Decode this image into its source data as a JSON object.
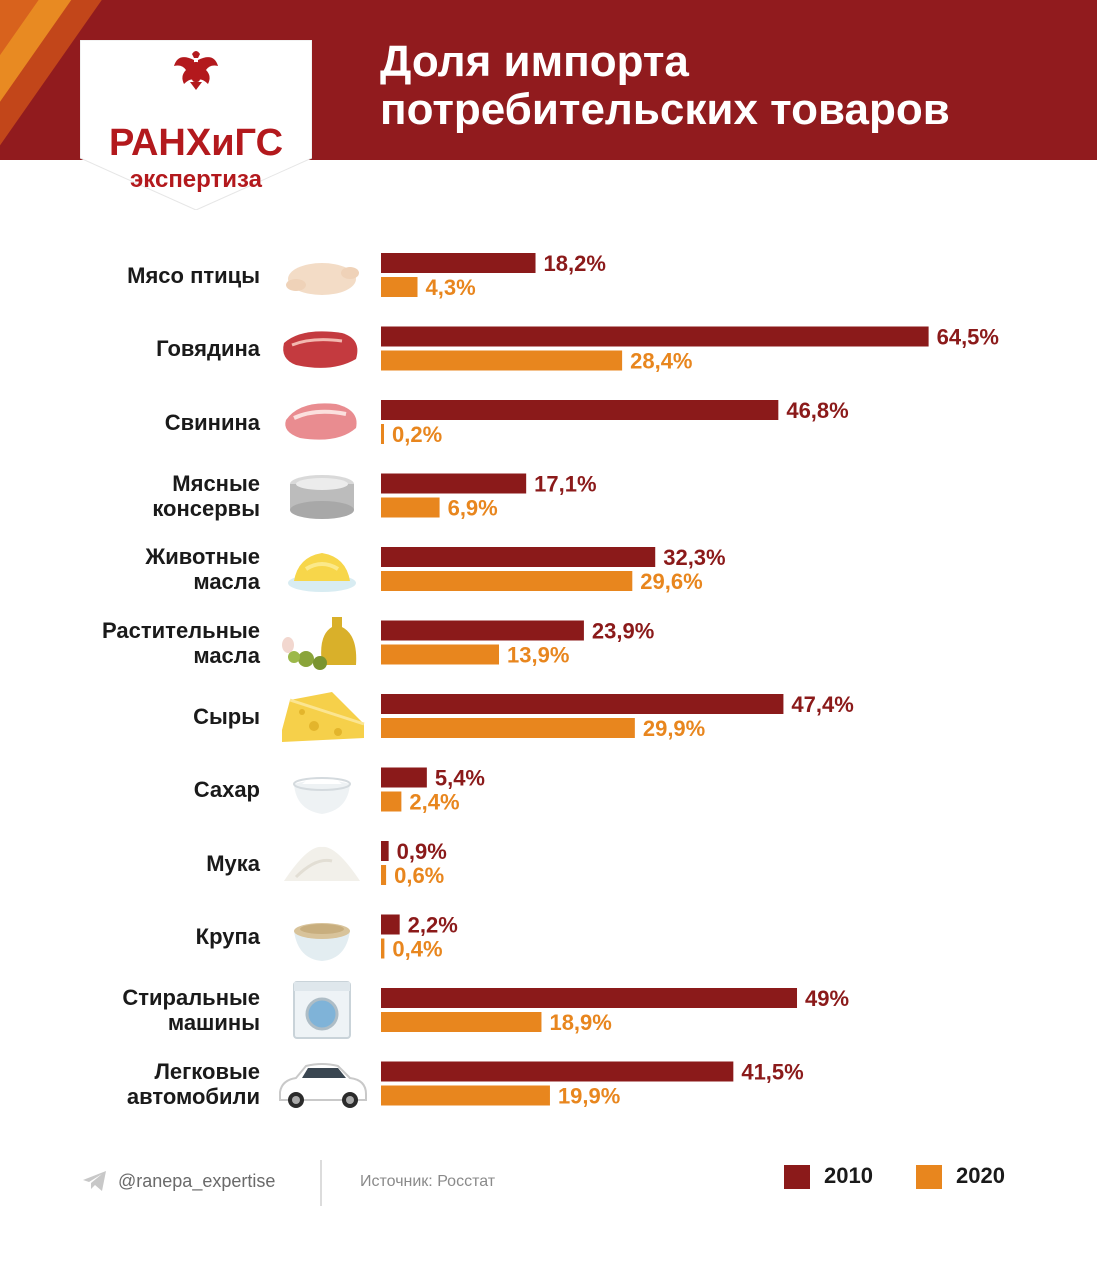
{
  "header": {
    "title_line1": "Доля импорта",
    "title_line2": "потребительских товаров"
  },
  "logo": {
    "name": "РАНХиГС",
    "subtitle": "экспертиза",
    "emblem_icon": "double-headed-eagle-icon"
  },
  "colors": {
    "header_bg": "#911b1e",
    "series_2010": "#8b1a1a",
    "series_2020": "#e8861e"
  },
  "chart_data": {
    "type": "bar",
    "orientation": "horizontal",
    "categories": [
      "Мясо птицы",
      "Говядина",
      "Свинина",
      "Мясные консервы",
      "Животные масла",
      "Растительные масла",
      "Сыры",
      "Сахар",
      "Мука",
      "Крупа",
      "Стиральные машины",
      "Легковые автомобили"
    ],
    "series": [
      {
        "name": "2010",
        "values": [
          18.2,
          64.5,
          46.8,
          17.1,
          32.3,
          23.9,
          47.4,
          5.4,
          0.9,
          2.2,
          49,
          41.5
        ],
        "labels": [
          "18,2%",
          "64,5%",
          "46,8%",
          "17,1%",
          "32,3%",
          "23,9%",
          "47,4%",
          "5,4%",
          "0,9%",
          "2,2%",
          "49%",
          "41,5%"
        ]
      },
      {
        "name": "2020",
        "values": [
          4.3,
          28.4,
          0.2,
          6.9,
          29.6,
          13.9,
          29.9,
          2.4,
          0.6,
          0.4,
          18.9,
          19.9
        ],
        "labels": [
          "4,3%",
          "28,4%",
          "0,2%",
          "6,9%",
          "29,6%",
          "13,9%",
          "29,9%",
          "2,4%",
          "0,6%",
          "0,4%",
          "18,9%",
          "19,9%"
        ]
      }
    ],
    "icons": [
      "chicken-icon",
      "beef-icon",
      "pork-icon",
      "canned-meat-icon",
      "butter-icon",
      "olive-oil-icon",
      "cheese-icon",
      "sugar-icon",
      "flour-icon",
      "grain-icon",
      "washing-machine-icon",
      "car-icon"
    ],
    "legend": [
      "2010",
      "2020"
    ],
    "legend_position": "bottom-right",
    "grid": false
  },
  "category_lines": [
    [
      "Мясо птицы"
    ],
    [
      "Говядина"
    ],
    [
      "Свинина"
    ],
    [
      "Мясные",
      "консервы"
    ],
    [
      "Животные",
      "масла"
    ],
    [
      "Растительные",
      "масла"
    ],
    [
      "Сыры"
    ],
    [
      "Сахар"
    ],
    [
      "Мука"
    ],
    [
      "Крупа"
    ],
    [
      "Стиральные",
      "машины"
    ],
    [
      "Легковые",
      "автомобили"
    ]
  ],
  "footer": {
    "handle": "@ranepa_expertise",
    "handle_icon": "telegram-icon",
    "source": "Источник: Росстат",
    "legend_2010": "2010",
    "legend_2020": "2020"
  }
}
